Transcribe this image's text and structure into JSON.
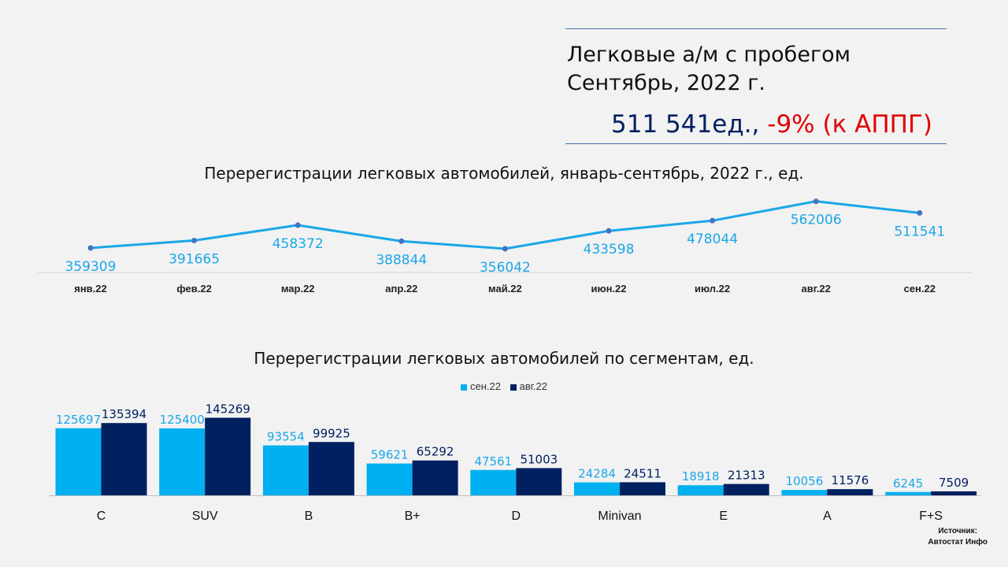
{
  "header": {
    "title_line1": "Легковые а/м с пробегом",
    "title_line2": "Сентябрь, 2022 г.",
    "total_value": "511 541ед., ",
    "total_change": "-9% (к АППГ)"
  },
  "colors": {
    "series_sep": "#00b0f0",
    "series_aug": "#002060",
    "line": "#1aa7e8",
    "point": "#4472c4"
  },
  "source": {
    "line1": "Источник:",
    "line2": "Автостат Инфо"
  },
  "chart_data": [
    {
      "type": "line",
      "title": "Перерегистрации легковых автомобилей, январь-сентябрь, 2022 г., ед.",
      "categories": [
        "янв.22",
        "фев.22",
        "мар.22",
        "апр.22",
        "май.22",
        "июн.22",
        "июл.22",
        "авг.22",
        "сен.22"
      ],
      "values": [
        359309,
        391665,
        458372,
        388844,
        356042,
        433598,
        478044,
        562006,
        511541
      ],
      "ylim": [
        0,
        600000
      ],
      "grid": false,
      "legend": "none"
    },
    {
      "type": "bar",
      "title": "Перерегистрации легковых автомобилей по сегментам, ед.",
      "categories": [
        "C",
        "SUV",
        "B",
        "B+",
        "D",
        "Minivan",
        "E",
        "A",
        "F+S"
      ],
      "series": [
        {
          "name": "сен.22",
          "values": [
            125697,
            125400,
            93554,
            59621,
            47561,
            24284,
            18918,
            10056,
            6245
          ]
        },
        {
          "name": "авг.22",
          "values": [
            135394,
            145269,
            99925,
            65292,
            51003,
            24511,
            21313,
            11576,
            7509
          ]
        }
      ],
      "ylim": [
        0,
        150000
      ],
      "grid": false,
      "legend": "top-center"
    }
  ]
}
